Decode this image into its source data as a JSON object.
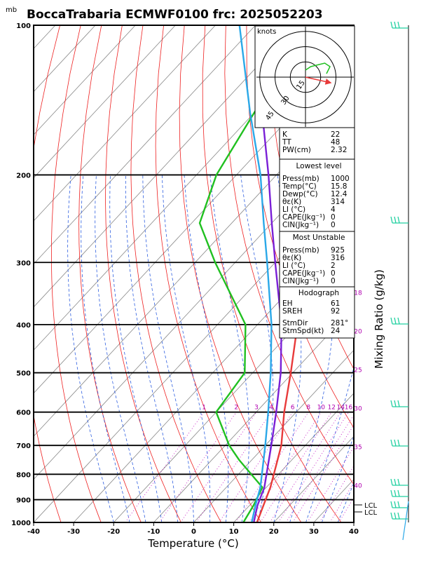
{
  "title": "BoccaTrabaria ECMWF0100 frc: 2025052203",
  "pressure_unit": "mb",
  "hodograph_unit": "knots",
  "hodograph_rings": [
    "15",
    "30",
    "45"
  ],
  "mixing_ratio_label": "Mixing Ratio (g/kg)",
  "lcl_labels": [
    "LCL",
    "LCL"
  ],
  "colors": {
    "temperature": "#e83a3a",
    "dewpoint": "#20c020",
    "parcel_a": "#7a1fd6",
    "parcel_b": "#2aa8e8",
    "isotherm": "#888888",
    "dry_adiabat": "#ee2020",
    "moist_adiabat": "#2f5fe0",
    "mixing_ratio": "#c000c0",
    "wind": "#20d0a0"
  },
  "stats": {
    "indices": [
      {
        "label": "K",
        "value": "22"
      },
      {
        "label": "TT",
        "value": "48"
      },
      {
        "label": "PW(cm)",
        "value": "2.32"
      }
    ],
    "lowest": {
      "header": "Lowest level",
      "rows": [
        {
          "label": "Press(mb)",
          "value": "1000"
        },
        {
          "label": "Temp(°C)",
          "value": "15.8"
        },
        {
          "label": "Dewp(°C)",
          "value": "12.4"
        },
        {
          "label": "θε(K)",
          "value": "314"
        },
        {
          "label": "LI (°C)",
          "value": "4"
        },
        {
          "label": "CAPE(Jkg⁻¹)",
          "value": "0"
        },
        {
          "label": "CIN(Jkg⁻¹)",
          "value": "0"
        }
      ]
    },
    "unstable": {
      "header": "Most Unstable",
      "rows": [
        {
          "label": "Press(mb)",
          "value": "925"
        },
        {
          "label": "θε(K)",
          "value": "316"
        },
        {
          "label": "LI (°C)",
          "value": "2"
        },
        {
          "label": "CAPE(Jkg⁻¹)",
          "value": "0"
        },
        {
          "label": "CIN(Jkg⁻¹)",
          "value": "0"
        }
      ]
    },
    "hodo": {
      "header": "Hodograph",
      "rows": [
        {
          "label": "EH",
          "value": "61"
        },
        {
          "label": "SREH",
          "value": "92"
        },
        {
          "label": "StmDir",
          "value": "281°"
        },
        {
          "label": "StmSpd(kt)",
          "value": "24"
        }
      ]
    }
  },
  "chart_data": {
    "type": "line",
    "title": "BoccaTrabaria ECMWF0100 frc: 2025052203",
    "xlabel": "Temperature (°C)",
    "ylabel": "mb",
    "xlim": [
      -40,
      40
    ],
    "ylim": [
      1000,
      100
    ],
    "y_scale": "log",
    "x_ticks": [
      -40,
      -30,
      -20,
      -10,
      0,
      10,
      20,
      30,
      40
    ],
    "y_ticks": [
      1000,
      900,
      800,
      700,
      600,
      500,
      400,
      300,
      200,
      100
    ],
    "mixing_ratio_labels": [
      "1",
      "2",
      "3",
      "4",
      "6",
      "8",
      "10",
      "12",
      "14",
      "16",
      "18",
      "20",
      "25",
      "30",
      "35",
      "40"
    ],
    "series": [
      {
        "key": "temperature",
        "color": "#e83a3a",
        "p": [
          1000,
          925,
          850,
          750,
          700,
          600,
          500,
          400,
          300,
          250,
          200,
          150,
          100
        ],
        "t": [
          15.8,
          13.5,
          11.0,
          6.5,
          4.0,
          -3.0,
          -10.5,
          -20.0,
          -34.0,
          -47.0,
          -51.0,
          -53.0,
          -52.0
        ]
      },
      {
        "key": "dewpoint",
        "color": "#20c020",
        "p": [
          1000,
          925,
          850,
          750,
          700,
          600,
          500,
          400,
          300,
          250,
          200,
          150,
          100
        ],
        "td": [
          12.4,
          11.0,
          9.0,
          -3.0,
          -9.0,
          -20.0,
          -22.0,
          -33.0,
          -55.0,
          -68.0,
          -75.0,
          -80.0,
          -86.0
        ]
      },
      {
        "key": "parcel_a",
        "color": "#7a1fd6",
        "p": [
          1000,
          925,
          850,
          700,
          600,
          500,
          400,
          300,
          250,
          200,
          150,
          100
        ],
        "t": [
          15.0,
          12.0,
          9.5,
          1.5,
          -5.0,
          -13.0,
          -24.0,
          -40.0,
          -50.0,
          -62.0,
          -78.0,
          -100.0
        ]
      },
      {
        "key": "parcel_b",
        "color": "#2aa8e8",
        "p": [
          1000,
          925,
          850,
          700,
          600,
          500,
          400,
          300,
          250,
          200,
          150,
          100
        ],
        "t": [
          14.5,
          11.5,
          8.5,
          0.0,
          -7.0,
          -15.5,
          -26.5,
          -42.0,
          -52.0,
          -64.0,
          -81.0,
          -104.0
        ]
      }
    ],
    "hodograph": {
      "u": [
        0,
        3,
        7,
        11,
        14,
        12
      ],
      "v": [
        4,
        6,
        7,
        8,
        6,
        2
      ],
      "storm_motion": {
        "dir": 281,
        "speed": 24
      }
    }
  }
}
